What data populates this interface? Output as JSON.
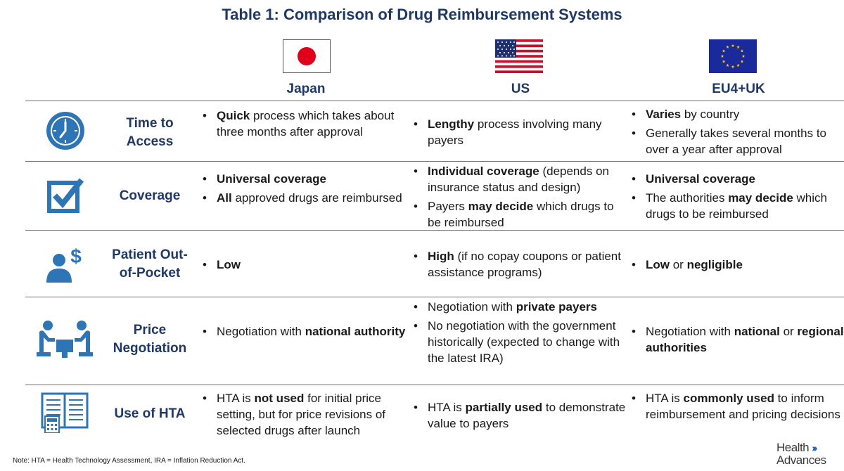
{
  "title": "Table 1: Comparison of Drug Reimbursement Systems",
  "columns": [
    "Japan",
    "US",
    "EU4+UK"
  ],
  "rows": [
    {
      "label": "Time to Access",
      "icon": "clock-icon",
      "cells": [
        [
          {
            "segments": [
              {
                "b": true,
                "t": "Quick"
              },
              {
                "b": false,
                "t": " process which takes about three months after approval"
              }
            ]
          }
        ],
        [
          {
            "segments": [
              {
                "b": true,
                "t": "Lengthy"
              },
              {
                "b": false,
                "t": " process involving many payers"
              }
            ]
          }
        ],
        [
          {
            "segments": [
              {
                "b": true,
                "t": "Varies"
              },
              {
                "b": false,
                "t": " by country"
              }
            ]
          },
          {
            "segments": [
              {
                "b": false,
                "t": "Generally takes several months to over a year after approval"
              }
            ]
          }
        ]
      ]
    },
    {
      "label": "Coverage",
      "icon": "checkbox-icon",
      "cells": [
        [
          {
            "segments": [
              {
                "b": true,
                "t": "Universal coverage"
              }
            ]
          },
          {
            "segments": [
              {
                "b": true,
                "t": "All"
              },
              {
                "b": false,
                "t": " approved drugs are reimbursed"
              }
            ]
          }
        ],
        [
          {
            "segments": [
              {
                "b": true,
                "t": "Individual coverage"
              },
              {
                "b": false,
                "t": " (depends on insurance status and design)"
              }
            ]
          },
          {
            "segments": [
              {
                "b": false,
                "t": "Payers "
              },
              {
                "b": true,
                "t": "may decide"
              },
              {
                "b": false,
                "t": " which drugs to be reimbursed"
              }
            ]
          }
        ],
        [
          {
            "segments": [
              {
                "b": true,
                "t": "Universal coverage"
              }
            ]
          },
          {
            "segments": [
              {
                "b": false,
                "t": "The authorities "
              },
              {
                "b": true,
                "t": "may decide"
              },
              {
                "b": false,
                "t": " which drugs to be reimbursed"
              }
            ]
          }
        ]
      ]
    },
    {
      "label": "Patient Out-of-Pocket",
      "icon": "person-dollar-icon",
      "cells": [
        [
          {
            "segments": [
              {
                "b": true,
                "t": "Low"
              }
            ]
          }
        ],
        [
          {
            "segments": [
              {
                "b": true,
                "t": "High"
              },
              {
                "b": false,
                "t": " (if no copay coupons or patient assistance programs)"
              }
            ]
          }
        ],
        [
          {
            "segments": [
              {
                "b": true,
                "t": "Low"
              },
              {
                "b": false,
                "t": " or "
              },
              {
                "b": true,
                "t": "negligible"
              }
            ]
          }
        ]
      ]
    },
    {
      "label": "Price Negotiation",
      "icon": "negotiation-table-icon",
      "cells": [
        [
          {
            "segments": [
              {
                "b": false,
                "t": "Negotiation with "
              },
              {
                "b": true,
                "t": "national authority"
              }
            ]
          }
        ],
        [
          {
            "segments": [
              {
                "b": false,
                "t": "Negotiation with "
              },
              {
                "b": true,
                "t": "private payers"
              }
            ]
          },
          {
            "segments": [
              {
                "b": false,
                "t": "No negotiation with the government historically (expected to change with the latest IRA)"
              }
            ]
          }
        ],
        [
          {
            "segments": [
              {
                "b": false,
                "t": "Negotiation with "
              },
              {
                "b": true,
                "t": "national"
              },
              {
                "b": false,
                "t": " or "
              },
              {
                "b": true,
                "t": "regional authorities"
              }
            ]
          }
        ]
      ]
    },
    {
      "label": "Use of HTA",
      "icon": "ledger-calculator-icon",
      "cells": [
        [
          {
            "segments": [
              {
                "b": false,
                "t": "HTA is "
              },
              {
                "b": true,
                "t": "not used"
              },
              {
                "b": false,
                "t": " for initial price setting, but for price revisions of selected drugs after launch"
              }
            ]
          }
        ],
        [
          {
            "segments": [
              {
                "b": false,
                "t": "HTA is "
              },
              {
                "b": true,
                "t": "partially used"
              },
              {
                "b": false,
                "t": " to demonstrate value to payers"
              }
            ]
          }
        ],
        [
          {
            "segments": [
              {
                "b": false,
                "t": "HTA is "
              },
              {
                "b": true,
                "t": "commonly used"
              },
              {
                "b": false,
                "t": " to inform reimbursement and pricing decisions"
              }
            ]
          }
        ]
      ]
    }
  ],
  "note": "Note:  HTA = Health Technology Assessment, IRA = Inflation Reduction Act.",
  "logo": {
    "line1": "Health",
    "line2": "Advances",
    "chevrons": "›››"
  },
  "colors": {
    "accent": "#1f3864",
    "icon_blue": "#2e75b6",
    "rule": "#6b6b6b",
    "logo_blue": "#1f5fbf"
  }
}
